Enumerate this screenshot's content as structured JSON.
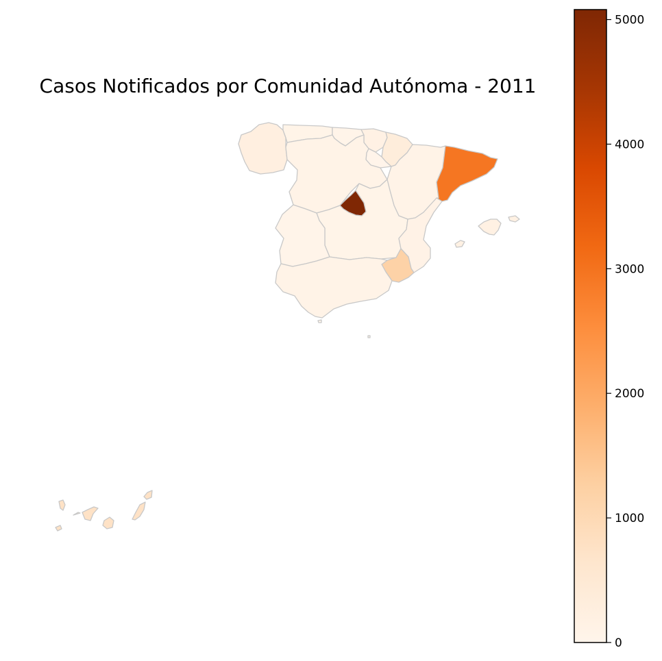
{
  "title": "Casos Notificados por Comunidad Autónoma - 2011",
  "colormap": {
    "name": "Oranges",
    "stops": [
      "#fff5eb",
      "#fee6ce",
      "#fdd0a2",
      "#fdae6b",
      "#fd8d3c",
      "#f16913",
      "#d94801",
      "#a63603",
      "#7f2704"
    ],
    "min": 0,
    "max": 5080
  },
  "colorbar": {
    "ticks": [
      {
        "value": 0,
        "label": "0"
      },
      {
        "value": 1000,
        "label": "1000"
      },
      {
        "value": 2000,
        "label": "2000"
      },
      {
        "value": 3000,
        "label": "3000"
      },
      {
        "value": 4000,
        "label": "4000"
      },
      {
        "value": 5000,
        "label": "5000"
      }
    ]
  },
  "border_color": "#c8c8c8",
  "regions": [
    {
      "id": "galicia",
      "value": 250
    },
    {
      "id": "asturias",
      "value": 60
    },
    {
      "id": "cantabria",
      "value": 40
    },
    {
      "id": "pais-vasco",
      "value": 150
    },
    {
      "id": "navarra",
      "value": 350
    },
    {
      "id": "la-rioja",
      "value": 30
    },
    {
      "id": "aragon",
      "value": 90
    },
    {
      "id": "cataluna",
      "value": 2950
    },
    {
      "id": "castilla-y-leon",
      "value": 90
    },
    {
      "id": "madrid",
      "value": 5080
    },
    {
      "id": "castilla-la-mancha",
      "value": 60
    },
    {
      "id": "extremadura",
      "value": 40
    },
    {
      "id": "comunidad-valenciana",
      "value": 120
    },
    {
      "id": "murcia",
      "value": 1200
    },
    {
      "id": "andalucia",
      "value": 80
    },
    {
      "id": "islas-baleares",
      "value": 180
    },
    {
      "id": "islas-canarias",
      "value": 750
    },
    {
      "id": "ceuta",
      "value": 10
    },
    {
      "id": "melilla",
      "value": 20
    }
  ]
}
